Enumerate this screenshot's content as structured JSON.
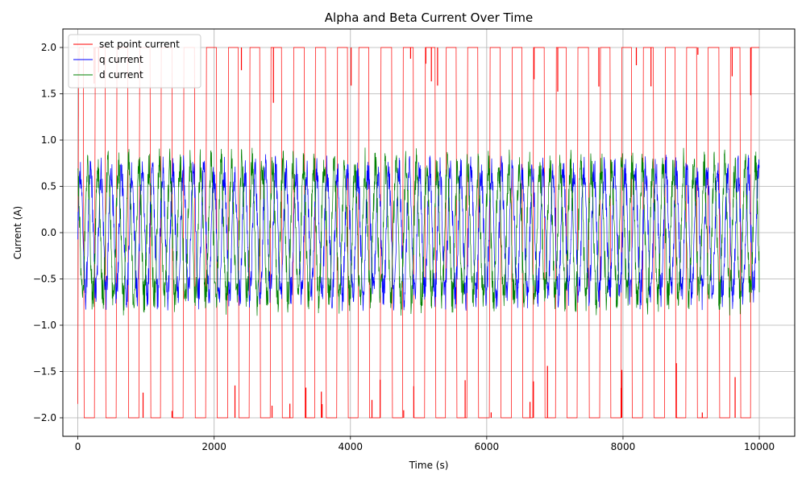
{
  "chart_data": {
    "type": "line",
    "title": "Alpha and Beta Current Over Time",
    "xlabel": "Time (s)",
    "ylabel": "Current (A)",
    "xlim": [
      -220,
      10520
    ],
    "ylim": [
      -2.2,
      2.2
    ],
    "x_ticks": [
      0,
      2000,
      4000,
      6000,
      8000,
      10000
    ],
    "x_tick_labels": [
      "0",
      "2000",
      "4000",
      "6000",
      "8000",
      "10000"
    ],
    "y_ticks": [
      -2.0,
      -1.5,
      -1.0,
      -0.5,
      0.0,
      0.5,
      1.0,
      1.5,
      2.0
    ],
    "y_tick_labels": [
      "−2.0",
      "−1.5",
      "−1.0",
      "−0.5",
      "0.0",
      "0.5",
      "1.0",
      "1.5",
      "2.0"
    ],
    "grid": true,
    "legend_position": "top-left",
    "series": [
      {
        "name": "set point current",
        "color": "#ff0000",
        "style": "square wave alternating between -2.0 and 2.0",
        "x_range": [
          0,
          10000
        ],
        "period": 320,
        "high": 2.0,
        "low": -2.0
      },
      {
        "name": "q current",
        "color": "#0000ff",
        "style": "dense oscillation",
        "x_range": [
          0,
          10000
        ],
        "min": -0.85,
        "max": 0.85
      },
      {
        "name": "d current",
        "color": "#008000",
        "style": "dense oscillation",
        "x_range": [
          0,
          10000
        ],
        "min": -0.9,
        "max": 0.92
      }
    ]
  }
}
